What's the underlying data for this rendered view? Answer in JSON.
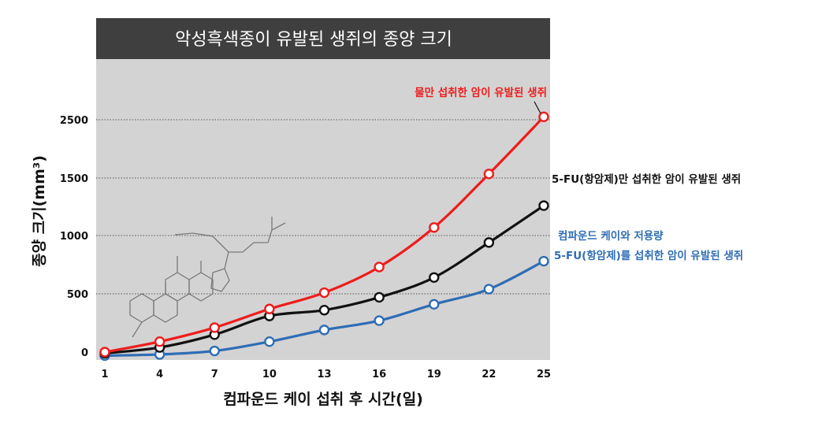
{
  "chart_data": {
    "type": "line",
    "title": "악성흑색종이 유발된 생쥐의 종양 크기",
    "xlabel": "컴파운드 케이 섭취 후 시간(일)",
    "ylabel": "종양 크기(mm³)",
    "x": [
      1,
      4,
      7,
      10,
      13,
      16,
      19,
      22,
      25
    ],
    "y_ticks": [
      0,
      500,
      1000,
      1500,
      2500
    ],
    "grid": "horizontal dotted",
    "plot_background": "#d4d3d3",
    "title_background": "#3f3f3f",
    "series": [
      {
        "name": "물만 섭취한 암이 유발된 생쥐",
        "color": "#ee1c1c",
        "values": [
          0,
          90,
          210,
          370,
          510,
          730,
          1070,
          1570,
          2550
        ]
      },
      {
        "name": "5-FU(항암제)만 섭취한 암이 유발된 생쥐",
        "color": "#111111",
        "values": [
          -10,
          40,
          150,
          310,
          360,
          470,
          640,
          940,
          1260
        ]
      },
      {
        "name_lines": [
          "컴파운드 케이와 저용량",
          "5-FU(항암제)를 섭취한 암이 유발된 생쥐"
        ],
        "color": "#2e6db5",
        "values": [
          -30,
          -20,
          10,
          90,
          190,
          270,
          410,
          540,
          780
        ]
      }
    ]
  }
}
